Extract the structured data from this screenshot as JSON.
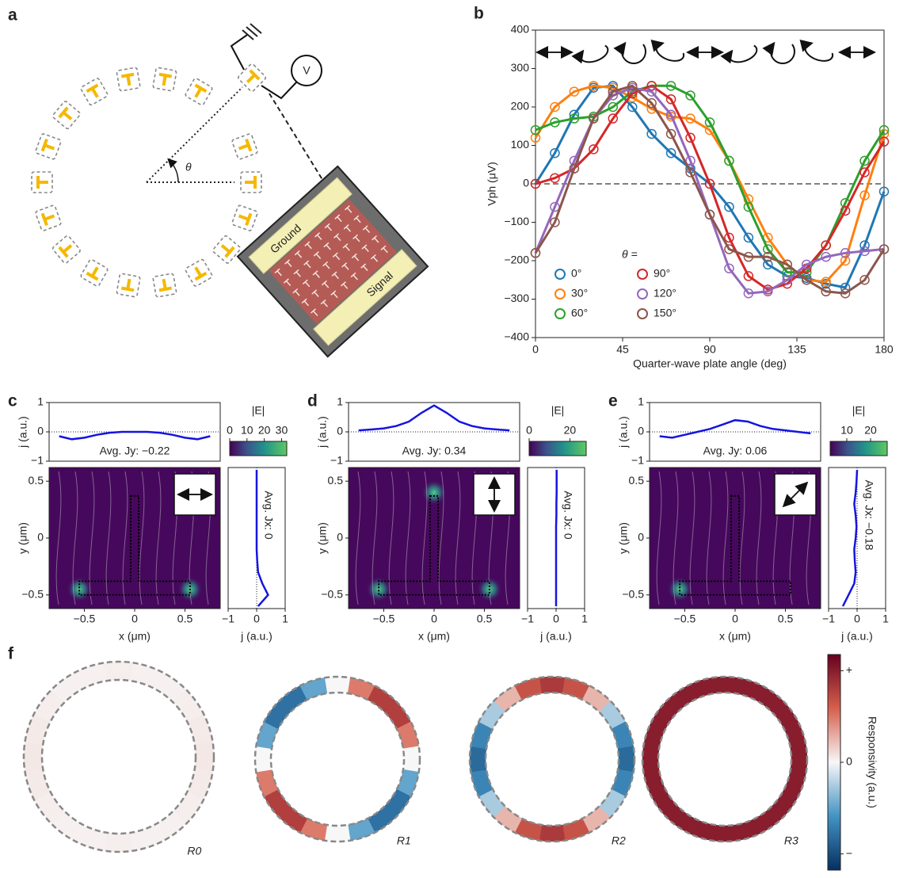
{
  "diagram": {
    "panel_label": "a",
    "voltmeter": "V",
    "angle": "θ",
    "device_labels": [
      "Ground",
      "Signal"
    ]
  },
  "chart_data": [
    {
      "type": "line",
      "panel_label": "b",
      "xlabel": "Quarter-wave plate angle (deg)",
      "ylabel": "Vph (μV)",
      "xlim": [
        0,
        180
      ],
      "ylim": [
        -400,
        400
      ],
      "xticks": [
        0,
        45,
        90,
        135,
        180
      ],
      "yticks": [
        {
          "value": -400,
          "label": "−400"
        },
        {
          "value": -300,
          "label": "−300"
        },
        {
          "value": -200,
          "label": "−200"
        },
        {
          "value": -100,
          "label": "−100"
        },
        0,
        100,
        200,
        300,
        400
      ],
      "reference_line": 0,
      "legend_title": "θ =",
      "x": [
        0,
        10,
        20,
        30,
        40,
        50,
        60,
        70,
        80,
        90,
        100,
        110,
        120,
        130,
        140,
        150,
        160,
        170,
        180
      ],
      "series": [
        {
          "name": "0°",
          "color": "#1f77b4",
          "values": [
            0,
            80,
            180,
            250,
            255,
            200,
            130,
            80,
            40,
            0,
            -60,
            -140,
            -210,
            -240,
            -245,
            -260,
            -270,
            -160,
            -20
          ]
        },
        {
          "name": "30°",
          "color": "#ff7f0e",
          "values": [
            120,
            200,
            240,
            255,
            250,
            225,
            195,
            175,
            170,
            140,
            60,
            -40,
            -140,
            -210,
            -250,
            -255,
            -200,
            -30,
            130
          ]
        },
        {
          "name": "60°",
          "color": "#2ca02c",
          "values": [
            140,
            160,
            170,
            175,
            200,
            240,
            255,
            255,
            230,
            160,
            60,
            -60,
            -170,
            -230,
            -230,
            -160,
            -50,
            60,
            140
          ]
        },
        {
          "name": "90°",
          "color": "#d62728",
          "values": [
            0,
            15,
            40,
            90,
            170,
            235,
            255,
            220,
            120,
            0,
            -140,
            -240,
            -275,
            -260,
            -220,
            -160,
            -70,
            30,
            110
          ]
        },
        {
          "name": "120°",
          "color": "#9467bd",
          "values": [
            -180,
            -60,
            60,
            170,
            230,
            250,
            240,
            180,
            60,
            -80,
            -220,
            -285,
            -280,
            -250,
            -210,
            -190,
            -180,
            -175,
            -170
          ]
        },
        {
          "name": "150°",
          "color": "#8c564b",
          "values": [
            -180,
            -100,
            40,
            170,
            240,
            255,
            210,
            130,
            30,
            -80,
            -170,
            -190,
            -190,
            -210,
            -250,
            -280,
            -285,
            -250,
            -170
          ]
        }
      ]
    },
    {
      "type": "field",
      "panel_label": "c",
      "top": {
        "ylabel": "j (a.u.)",
        "ylim": [
          -1,
          1
        ],
        "yticks": [
          1,
          0,
          {
            "value": -1,
            "label": "−1"
          }
        ],
        "reference_line": 0,
        "color": "#1515e0",
        "x": [
          -0.75,
          -0.625,
          -0.5,
          -0.375,
          -0.25,
          -0.125,
          0,
          0.125,
          0.25,
          0.375,
          0.5,
          0.625,
          0.75
        ],
        "values": [
          -0.15,
          -0.25,
          -0.2,
          -0.1,
          -0.03,
          0,
          0,
          0,
          -0.03,
          -0.1,
          -0.2,
          -0.25,
          -0.15
        ],
        "annotation": "Avg. Jy: −0.22"
      },
      "main": {
        "xlabel": "x (μm)",
        "ylabel": "y (μm)",
        "xlim": [
          -0.85,
          0.85
        ],
        "ylim": [
          -0.62,
          0.62
        ],
        "xticks": [
          {
            "value": -0.5,
            "label": "−0.5"
          },
          0,
          0.5
        ],
        "yticks": [
          0.5,
          0,
          {
            "value": -0.5,
            "label": "−0.5"
          }
        ]
      },
      "side": {
        "xlabel": "j (a.u.)",
        "xlim": [
          -1,
          1
        ],
        "xticks": [
          {
            "value": -1,
            "label": "−1"
          },
          0,
          1
        ],
        "reference_line": 0,
        "color": "#1515e0",
        "y": [
          -0.6,
          -0.5,
          -0.4,
          -0.3,
          -0.2,
          -0.1,
          0,
          0.1,
          0.2,
          0.3,
          0.4,
          0.5,
          0.6
        ],
        "values": [
          0.05,
          0.4,
          0.2,
          0.05,
          0.02,
          0,
          0,
          0,
          0,
          0,
          0,
          0,
          0
        ],
        "annotation": "Avg. Jx: 0"
      },
      "colorbar": {
        "label": "|E|",
        "lim": [
          0,
          33
        ],
        "ticks": [
          0,
          10,
          20,
          30
        ]
      }
    },
    {
      "type": "field",
      "panel_label": "d",
      "top": {
        "ylabel": "j (a.u.)",
        "ylim": [
          -1,
          1
        ],
        "yticks": [
          1,
          0,
          {
            "value": -1,
            "label": "−1"
          }
        ],
        "reference_line": 0,
        "color": "#1515e0",
        "x": [
          -0.75,
          -0.625,
          -0.5,
          -0.375,
          -0.25,
          -0.125,
          0,
          0.125,
          0.25,
          0.375,
          0.5,
          0.625,
          0.75
        ],
        "values": [
          0.05,
          0.08,
          0.12,
          0.2,
          0.35,
          0.65,
          0.9,
          0.65,
          0.35,
          0.2,
          0.12,
          0.08,
          0.05
        ],
        "annotation": "Avg. Jy: 0.34"
      },
      "main": {
        "xlabel": "x (μm)",
        "ylabel": "y (μm)",
        "xlim": [
          -0.85,
          0.85
        ],
        "ylim": [
          -0.62,
          0.62
        ],
        "xticks": [
          {
            "value": -0.5,
            "label": "−0.5"
          },
          0,
          0.5
        ],
        "yticks": [
          0.5,
          0,
          {
            "value": -0.5,
            "label": "−0.5"
          }
        ]
      },
      "side": {
        "xlabel": "j (a.u.)",
        "xlim": [
          -1,
          1
        ],
        "xticks": [
          {
            "value": -1,
            "label": "−1"
          },
          0,
          1
        ],
        "reference_line": 0,
        "color": "#1515e0",
        "y": [
          -0.6,
          -0.5,
          -0.4,
          -0.3,
          -0.2,
          -0.1,
          0,
          0.1,
          0.2,
          0.3,
          0.4,
          0.5,
          0.6
        ],
        "values": [
          0,
          0,
          0,
          0,
          0,
          0,
          0,
          0,
          0.01,
          0.01,
          0.02,
          0.02,
          0.02
        ],
        "annotation": "Avg. Jx: 0"
      },
      "colorbar": {
        "label": "|E|",
        "lim": [
          0,
          28
        ],
        "ticks": [
          0,
          20
        ]
      }
    },
    {
      "type": "field",
      "panel_label": "e",
      "top": {
        "ylabel": "j (a.u.)",
        "ylim": [
          -1,
          1
        ],
        "yticks": [
          1,
          0,
          {
            "value": -1,
            "label": "−1"
          }
        ],
        "reference_line": 0,
        "color": "#1515e0",
        "x": [
          -0.75,
          -0.625,
          -0.5,
          -0.375,
          -0.25,
          -0.125,
          0,
          0.125,
          0.25,
          0.375,
          0.5,
          0.625,
          0.75
        ],
        "values": [
          -0.15,
          -0.2,
          -0.1,
          0,
          0.1,
          0.25,
          0.4,
          0.35,
          0.2,
          0.1,
          0.05,
          0,
          -0.05
        ],
        "annotation": "Avg. Jy: 0.06"
      },
      "main": {
        "xlabel": "x (μm)",
        "ylabel": "y (μm)",
        "xlim": [
          -0.85,
          0.85
        ],
        "ylim": [
          -0.62,
          0.62
        ],
        "xticks": [
          {
            "value": -0.5,
            "label": "−0.5"
          },
          0,
          0.5
        ],
        "yticks": [
          0.5,
          0,
          {
            "value": -0.5,
            "label": "−0.5"
          }
        ]
      },
      "side": {
        "xlabel": "j (a.u.)",
        "xlim": [
          -1,
          1
        ],
        "xticks": [
          {
            "value": -1,
            "label": "−1"
          },
          0,
          1
        ],
        "reference_line": 0,
        "color": "#1515e0",
        "y": [
          -0.6,
          -0.5,
          -0.4,
          -0.3,
          -0.2,
          -0.1,
          0,
          0.1,
          0.2,
          0.3,
          0.4,
          0.5,
          0.6
        ],
        "values": [
          -0.5,
          -0.3,
          -0.1,
          -0.05,
          -0.08,
          -0.1,
          -0.05,
          -0.02,
          -0.05,
          -0.1,
          -0.05,
          -0.02,
          0
        ],
        "annotation": "Avg. Jx: −0.18"
      },
      "colorbar": {
        "label": "|E|",
        "lim": [
          3,
          27
        ],
        "ticks": [
          10,
          20
        ]
      }
    },
    {
      "type": "ring",
      "panel_label": "f",
      "rings": [
        {
          "label": "R0",
          "values": [
            0.03,
            0.02,
            0.02,
            0.03,
            0.04,
            0.05,
            0.04,
            0.03,
            0.02,
            0.02,
            0.03,
            0.02,
            0.02,
            0.03,
            0.04,
            0.05,
            0.04,
            0.03,
            0.02,
            0.02
          ]
        },
        {
          "label": "R1",
          "values": [
            0,
            0.41,
            0.67,
            0.67,
            0.41,
            0,
            -0.41,
            -0.67,
            -0.67,
            -0.41,
            0,
            0.41,
            0.67,
            0.67,
            0.41,
            0,
            -0.41,
            -0.67,
            -0.67,
            -0.41
          ]
        },
        {
          "label": "R2",
          "values": [
            0.7,
            0.57,
            0.22,
            -0.22,
            -0.57,
            -0.7,
            -0.57,
            -0.22,
            0.22,
            0.57,
            0.7,
            0.57,
            0.22,
            -0.22,
            -0.57,
            -0.7,
            -0.57,
            -0.22,
            0.22,
            0.57
          ]
        },
        {
          "label": "R3",
          "values": [
            0.85,
            0.85,
            0.85,
            0.85,
            0.85,
            0.85,
            0.85,
            0.85,
            0.85,
            0.85,
            0.85,
            0.85,
            0.85,
            0.85,
            0.85,
            0.85,
            0.85,
            0.85,
            0.85,
            0.85
          ]
        }
      ],
      "colorbar": {
        "label": "Responsivity (a.u.)",
        "lim": [
          -1,
          1
        ],
        "ticks": [
          {
            "value": 0.85,
            "label": "+"
          },
          0,
          {
            "value": -0.85,
            "label": "−"
          }
        ]
      }
    }
  ]
}
